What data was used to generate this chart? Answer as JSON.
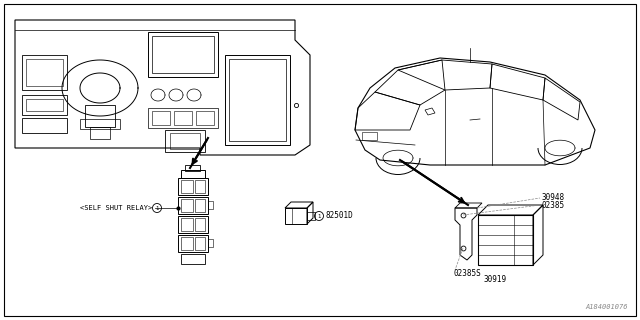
{
  "background_color": "#ffffff",
  "line_color": "#000000",
  "text_color": "#000000",
  "gray_color": "#888888",
  "part_labels": {
    "self_shut_relay": "<SELF SHUT RELAY>",
    "circle1": "1",
    "82501D": "82501D",
    "30948": "30948",
    "02385_top": "02385",
    "02385_bot": "02385S",
    "30919": "30919"
  },
  "watermark": "A184001076",
  "font_mono": "monospace"
}
